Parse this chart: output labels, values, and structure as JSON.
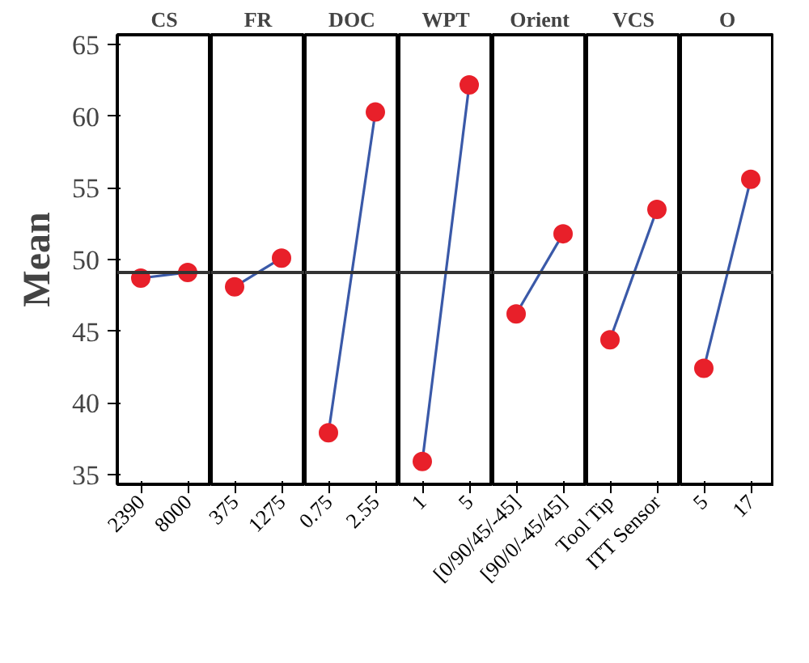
{
  "chart_data": [
    {
      "type": "line",
      "title": "CS",
      "ylabel": "Mean",
      "categories": [
        "2390",
        "8000"
      ],
      "series": [
        {
          "color": "#3a59a8",
          "colors": [
            "#e8202a",
            "#e8202a"
          ],
          "values": [
            48.7,
            49.1
          ]
        }
      ],
      "marker": "circle",
      "ylim": [
        34.3,
        65.7
      ],
      "yticks": [
        35,
        40,
        45,
        50,
        55,
        60,
        65
      ],
      "ref_lines": [
        {
          "axis": "y",
          "value": 49.1,
          "color": "#333333"
        }
      ]
    },
    {
      "type": "line",
      "title": "FR",
      "categories": [
        "375",
        "1275"
      ],
      "series": [
        {
          "color": "#3a59a8",
          "colors": [
            "#e8202a",
            "#e8202a"
          ],
          "values": [
            48.1,
            50.1
          ]
        }
      ],
      "marker": "circle",
      "ylim": [
        34.3,
        65.7
      ],
      "tick_labels": "x",
      "ref_lines": [
        {
          "axis": "y",
          "value": 49.1,
          "color": "#333333"
        }
      ]
    },
    {
      "type": "line",
      "title": "DOC",
      "categories": [
        "0.75",
        "2.55"
      ],
      "series": [
        {
          "color": "#3a59a8",
          "colors": [
            "#e8202a",
            "#e8202a"
          ],
          "values": [
            37.9,
            60.3
          ]
        }
      ],
      "marker": "circle",
      "ylim": [
        34.3,
        65.7
      ],
      "tick_labels": "x",
      "ref_lines": [
        {
          "axis": "y",
          "value": 49.1,
          "color": "#333333"
        }
      ]
    },
    {
      "type": "line",
      "title": "WPT",
      "categories": [
        "1",
        "5"
      ],
      "series": [
        {
          "color": "#3a59a8",
          "colors": [
            "#e8202a",
            "#e8202a"
          ],
          "values": [
            35.9,
            62.2
          ]
        }
      ],
      "marker": "circle",
      "ylim": [
        34.3,
        65.7
      ],
      "tick_labels": "x",
      "ref_lines": [
        {
          "axis": "y",
          "value": 49.1,
          "color": "#333333"
        }
      ]
    },
    {
      "type": "line",
      "title": "Orient",
      "categories": [
        "[0/90/45/-45]",
        "[90/0/-45/45]"
      ],
      "series": [
        {
          "color": "#3a59a8",
          "colors": [
            "#e8202a",
            "#e8202a"
          ],
          "values": [
            46.2,
            51.8
          ]
        }
      ],
      "marker": "circle",
      "ylim": [
        34.3,
        65.7
      ],
      "tick_labels": "x",
      "ref_lines": [
        {
          "axis": "y",
          "value": 49.1,
          "color": "#333333"
        }
      ]
    },
    {
      "type": "line",
      "title": "VCS",
      "categories": [
        "Tool Tip",
        "ITT Sensor"
      ],
      "series": [
        {
          "color": "#3a59a8",
          "colors": [
            "#e8202a",
            "#e8202a"
          ],
          "values": [
            44.4,
            53.5
          ]
        }
      ],
      "marker": "circle",
      "ylim": [
        34.3,
        65.7
      ],
      "tick_labels": "x",
      "ref_lines": [
        {
          "axis": "y",
          "value": 49.1,
          "color": "#333333"
        }
      ]
    },
    {
      "type": "line",
      "title": "O",
      "categories": [
        "5",
        "17"
      ],
      "series": [
        {
          "color": "#3a59a8",
          "colors": [
            "#e8202a",
            "#e8202a"
          ],
          "values": [
            42.4,
            55.6
          ]
        }
      ],
      "marker": "circle",
      "ylim": [
        34.3,
        65.7
      ],
      "tick_labels": "x",
      "ref_lines": [
        {
          "axis": "y",
          "value": 49.1,
          "color": "#333333"
        }
      ]
    }
  ]
}
